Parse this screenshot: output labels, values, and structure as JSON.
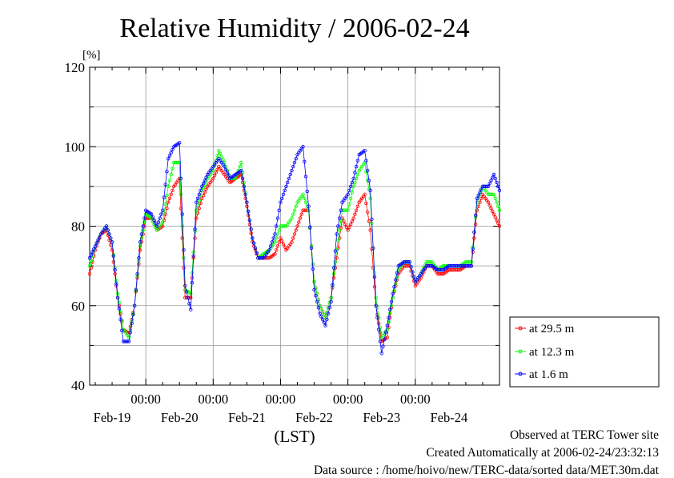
{
  "chart_data": {
    "type": "line",
    "title": "Relative Humidity / 2006-02-24",
    "ylabel": "[%]",
    "xlabel": "(LST)",
    "ylim": [
      40,
      120
    ],
    "yticks": [
      40,
      60,
      80,
      100,
      120
    ],
    "xrange_hours": [
      0,
      146
    ],
    "time_labels": [
      "00:00",
      "00:00",
      "00:00",
      "00:00",
      "00:00"
    ],
    "date_labels": [
      "Feb-19",
      "Feb-20",
      "Feb-21",
      "Feb-22",
      "Feb-23",
      "Feb-24"
    ],
    "grid": true,
    "legend_position": "right",
    "x_hours": [
      0,
      2,
      4,
      6,
      8,
      10,
      12,
      14,
      16,
      18,
      20,
      22,
      24,
      26,
      28,
      30,
      32,
      34,
      36,
      38,
      40,
      42,
      44,
      46,
      48,
      50,
      52,
      54,
      56,
      58,
      60,
      62,
      64,
      66,
      68,
      70,
      72,
      74,
      76,
      78,
      80,
      82,
      84,
      86,
      88,
      90,
      92,
      94,
      96,
      98,
      100,
      102,
      104,
      106,
      108,
      110,
      112,
      114,
      116,
      118,
      120,
      122,
      124,
      126,
      128,
      130,
      132,
      134,
      136,
      138,
      140,
      142,
      144,
      146
    ],
    "series": [
      {
        "name": "at 29.5 m",
        "color": "#ff0000",
        "values": [
          68,
          74,
          78,
          79,
          74,
          62,
          54,
          53,
          60,
          74,
          82,
          82,
          79,
          80,
          86,
          90,
          92,
          62,
          62,
          82,
          87,
          90,
          92,
          95,
          93,
          91,
          92,
          93,
          85,
          76,
          72,
          72,
          72,
          73,
          77,
          74,
          76,
          80,
          84,
          84,
          66,
          60,
          57,
          62,
          72,
          82,
          79,
          82,
          86,
          88,
          79,
          60,
          51,
          52,
          62,
          68,
          70,
          70,
          65,
          67,
          70,
          70,
          68,
          68,
          69,
          69,
          69,
          70,
          70,
          84,
          88,
          86,
          83,
          80
        ]
      },
      {
        "name": "at 12.3 m",
        "color": "#00ff00",
        "values": [
          70,
          75,
          78,
          80,
          76,
          63,
          54,
          52,
          60,
          75,
          83,
          82,
          79,
          81,
          90,
          96,
          96,
          64,
          63,
          84,
          89,
          92,
          94,
          99,
          96,
          92,
          92,
          96,
          86,
          77,
          72,
          73,
          74,
          76,
          80,
          80,
          82,
          86,
          88,
          84,
          66,
          60,
          57,
          62,
          74,
          84,
          84,
          90,
          94,
          96,
          87,
          62,
          52,
          54,
          62,
          69,
          71,
          71,
          66,
          68,
          71,
          71,
          69,
          70,
          70,
          70,
          70,
          71,
          71,
          86,
          90,
          88,
          88,
          84
        ]
      },
      {
        "name": "at 1.6 m",
        "color": "#0000ff",
        "values": [
          72,
          75,
          78,
          80,
          76,
          62,
          51,
          51,
          60,
          76,
          84,
          83,
          80,
          84,
          97,
          100,
          101,
          65,
          59,
          86,
          90,
          93,
          95,
          97,
          95,
          92,
          93,
          94,
          86,
          77,
          72,
          72,
          74,
          78,
          86,
          90,
          94,
          98,
          100,
          85,
          64,
          58,
          55,
          61,
          78,
          86,
          88,
          92,
          98,
          99,
          89,
          60,
          48,
          55,
          63,
          70,
          71,
          71,
          66,
          68,
          70,
          70,
          69,
          69,
          70,
          70,
          70,
          70,
          70,
          87,
          90,
          90,
          93,
          89
        ]
      }
    ]
  },
  "legend_items": [
    "at 29.5 m",
    "at 12.3 m",
    "at 1.6 m"
  ],
  "footer": {
    "line1": "Observed at TERC Tower site",
    "line2": "Created Automatically at 2006-02-24/23:32:13",
    "line3": "Data source : /home/hoivo/new/TERC-data/sorted  data/MET.30m.dat"
  }
}
